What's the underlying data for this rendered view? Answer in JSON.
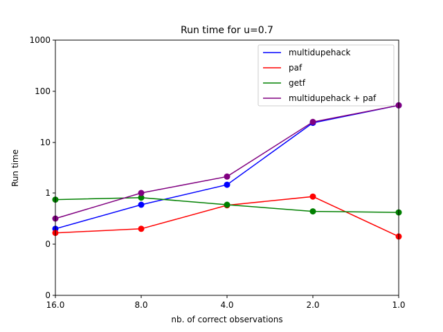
{
  "chart_data": {
    "type": "line",
    "title": "Run time for u=0.7",
    "xlabel": "nb. of correct observations",
    "ylabel": "Run time",
    "x_tick_labels": [
      "16.0",
      "8.0",
      "4.0",
      "2.0",
      "1.0"
    ],
    "y_tick_labels": [
      "0",
      "0",
      "1",
      "10",
      "100",
      "1000"
    ],
    "legend_position": "top-right",
    "grid": false,
    "series": [
      {
        "name": "multidupehack",
        "color": "#0000ff",
        "values": [
          0.3,
          0.77,
          1.45,
          24,
          53
        ]
      },
      {
        "name": "paf",
        "color": "#ff0000",
        "values": [
          0.22,
          0.3,
          0.76,
          0.93,
          0.15
        ]
      },
      {
        "name": "getf",
        "color": "#008000",
        "values": [
          0.87,
          0.91,
          0.77,
          0.64,
          0.62
        ]
      },
      {
        "name": "multidupehack + paf",
        "color": "#800080",
        "values": [
          0.5,
          1.0,
          2.1,
          25,
          53
        ]
      }
    ]
  }
}
